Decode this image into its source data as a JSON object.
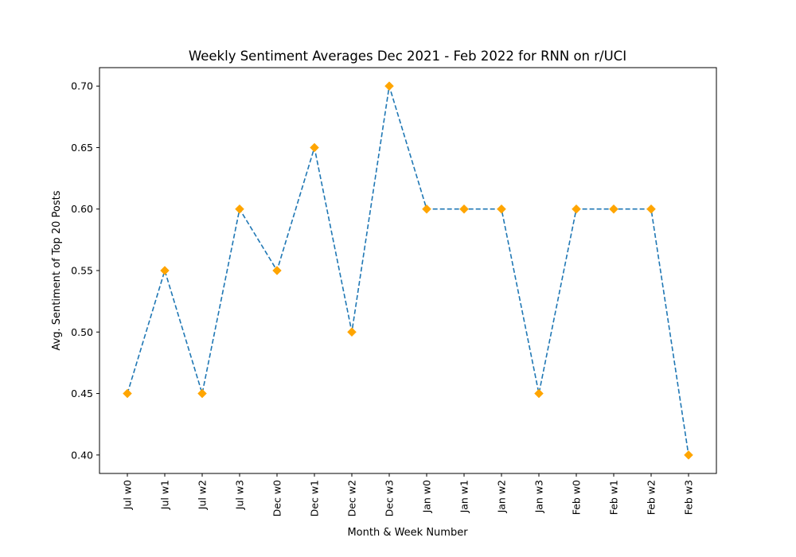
{
  "chart_data": {
    "type": "line",
    "title": "Weekly Sentiment Averages Dec 2021 - Feb 2022 for RNN on r/UCI",
    "xlabel": "Month & Week Number",
    "ylabel": "Avg. Sentiment of Top 20 Posts",
    "categories": [
      "Jul w0",
      "Jul w1",
      "Jul w2",
      "Jul w3",
      "Dec w0",
      "Dec w1",
      "Dec w2",
      "Dec w3",
      "Jan w0",
      "Jan w1",
      "Jan w2",
      "Jan w3",
      "Feb w0",
      "Feb w1",
      "Feb w2",
      "Feb w3"
    ],
    "series": [
      {
        "values": [
          0.45,
          0.55,
          0.45,
          0.6,
          0.55,
          0.65,
          0.5,
          0.7,
          0.6,
          0.6,
          0.6,
          0.45,
          0.6,
          0.6,
          0.6,
          0.4
        ],
        "line_color": "#1f77b4",
        "line_style": "dashed",
        "marker": "diamond",
        "marker_color": "#ffa500"
      }
    ],
    "yticks": [
      "0.40",
      "0.45",
      "0.50",
      "0.55",
      "0.60",
      "0.65",
      "0.70"
    ],
    "ylim": [
      0.385,
      0.715
    ],
    "grid": false,
    "legend": "none"
  }
}
